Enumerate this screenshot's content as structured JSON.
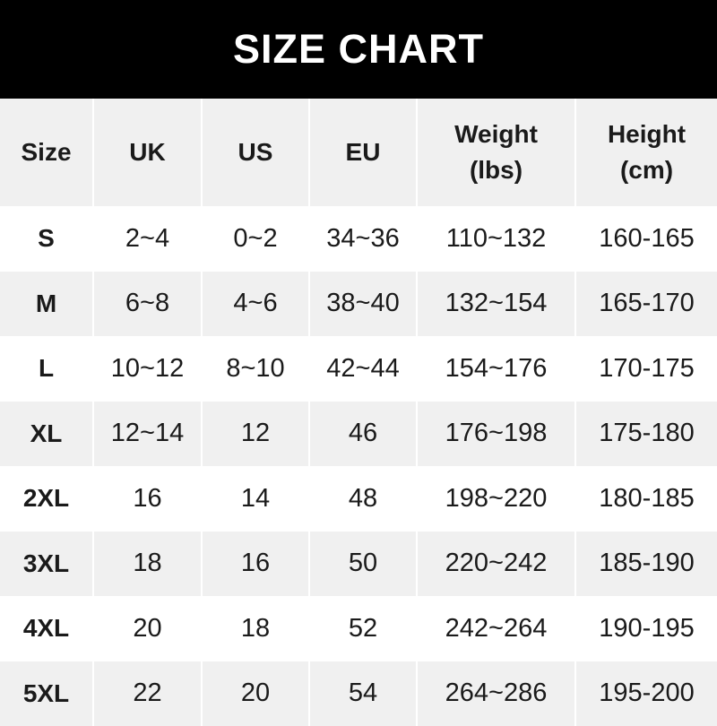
{
  "title": "SIZE CHART",
  "headers": [
    "Size",
    "UK",
    "US",
    "EU",
    "Weight\n(lbs)",
    "Height\n(cm)"
  ],
  "rows": [
    [
      "S",
      "2~4",
      "0~2",
      "34~36",
      "110~132",
      "160-165"
    ],
    [
      "M",
      "6~8",
      "4~6",
      "38~40",
      "132~154",
      "165-170"
    ],
    [
      "L",
      "10~12",
      "8~10",
      "42~44",
      "154~176",
      "170-175"
    ],
    [
      "XL",
      "12~14",
      "12",
      "46",
      "176~198",
      "175-180"
    ],
    [
      "2XL",
      "16",
      "14",
      "48",
      "198~220",
      "180-185"
    ],
    [
      "3XL",
      "18",
      "16",
      "50",
      "220~242",
      "185-190"
    ],
    [
      "4XL",
      "20",
      "18",
      "52",
      "242~264",
      "190-195"
    ],
    [
      "5XL",
      "22",
      "20",
      "54",
      "264~286",
      "195-200"
    ]
  ],
  "colors": {
    "banner": "#000000",
    "stripe": "#f0f0f0",
    "text": "#1a1a1a"
  }
}
